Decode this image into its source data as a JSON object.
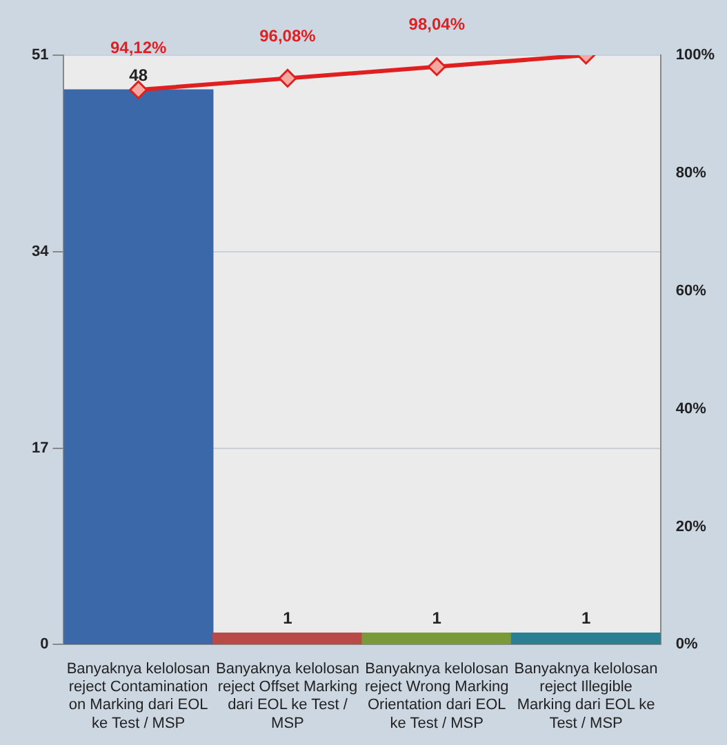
{
  "chart_data": {
    "type": "bar",
    "categories": [
      "Banyaknya kelolosan reject Contamination on Marking dari EOL ke Test / MSP",
      "Banyaknya kelolosan reject Offset Marking dari EOL ke Test / MSP",
      "Banyaknya kelolosan reject Wrong Marking Orientation dari EOL ke Test / MSP",
      "Banyaknya kelolosan reject Illegible Marking dari EOL ke Test / MSP"
    ],
    "series": [
      {
        "values": [
          48,
          1,
          1,
          1
        ],
        "colors": [
          "#3a68a8",
          "#b84a48",
          "#7a9a3a",
          "#2a7f94"
        ],
        "value_labels": [
          "48",
          "1",
          "1",
          "1"
        ]
      },
      {
        "type": "line",
        "axis": "y2",
        "color": "#e02020",
        "values": [
          94.12,
          96.08,
          98.04,
          100
        ],
        "value_labels": [
          "94,12%",
          "96,08%",
          "98,04%",
          null
        ]
      }
    ],
    "ylim": [
      0,
      51
    ],
    "yticks": [
      0,
      17,
      34,
      51
    ],
    "y2lim": [
      0,
      100
    ],
    "y2ticks": [
      {
        "value": 0,
        "label": "0%"
      },
      {
        "value": 20,
        "label": "20%"
      },
      {
        "value": 40,
        "label": "40%"
      },
      {
        "value": 60,
        "label": "60%"
      },
      {
        "value": 80,
        "label": "80%"
      },
      {
        "value": 100,
        "label": "100%"
      }
    ],
    "grid": "y",
    "legend": false,
    "marker": "diamond",
    "line_style": "solid"
  }
}
